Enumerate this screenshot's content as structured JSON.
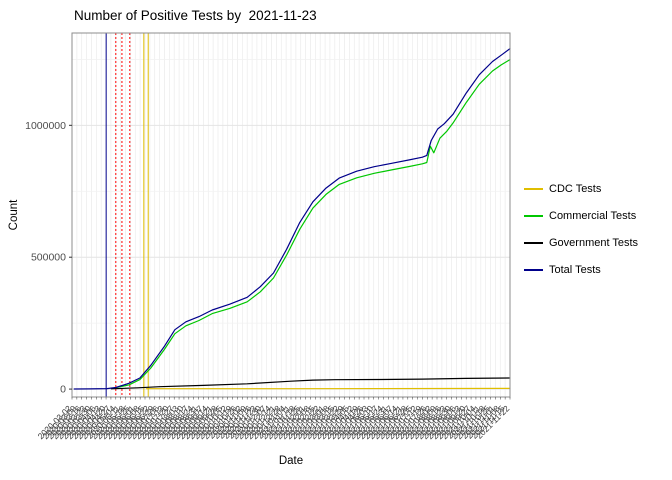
{
  "title": "Number of Positive Tests by  2021-11-23",
  "legend": {
    "position": "right",
    "items": [
      {
        "label": "CDC Tests",
        "color": "#E0BE00"
      },
      {
        "label": "Commercial Tests",
        "color": "#00C700"
      },
      {
        "label": "Government Tests",
        "color": "#000000"
      },
      {
        "label": "Total Tests",
        "color": "#00008B"
      }
    ]
  },
  "chart_data": {
    "type": "line",
    "title": "Number of Positive Tests by  2021-11-23",
    "xlabel": "Date",
    "ylabel": "Count",
    "ylim": [
      -30000,
      1350000
    ],
    "yticks": [
      0,
      500000,
      1000000
    ],
    "ytick_labels": [
      "0",
      "500000",
      "1000000"
    ],
    "ygrid_minor": [
      250000,
      750000,
      1250000
    ],
    "grid": true,
    "legend_position": "right",
    "x_axis": {
      "start_date": "2020-03-02",
      "end_date": "2021-11-23",
      "label_step_days": 7,
      "label_angle": 45
    },
    "vlines": [
      {
        "frac": 0.078,
        "color": "#00008B",
        "style": "solid"
      },
      {
        "frac": 0.1,
        "color": "#FF0000",
        "style": "dotted"
      },
      {
        "frac": 0.114,
        "color": "#FF0000",
        "style": "dotted"
      },
      {
        "frac": 0.132,
        "color": "#FF0000",
        "style": "dotted"
      },
      {
        "frac": 0.164,
        "color": "#E0BE00",
        "style": "solid"
      },
      {
        "frac": 0.174,
        "color": "#E0BE00",
        "style": "solid"
      }
    ],
    "series": [
      {
        "name": "CDC Tests",
        "color": "#E0BE00",
        "points": [
          [
            0.17,
            1500
          ],
          [
            0.5,
            1600
          ],
          [
            1.0,
            2500
          ]
        ]
      },
      {
        "name": "Commercial Tests",
        "color": "#00C700",
        "points": [
          [
            0.09,
            2000
          ],
          [
            0.13,
            16000
          ],
          [
            0.155,
            36000
          ],
          [
            0.18,
            80000
          ],
          [
            0.21,
            148000
          ],
          [
            0.235,
            210000
          ],
          [
            0.26,
            240000
          ],
          [
            0.29,
            260000
          ],
          [
            0.32,
            286000
          ],
          [
            0.36,
            306000
          ],
          [
            0.4,
            331000
          ],
          [
            0.43,
            369000
          ],
          [
            0.46,
            421000
          ],
          [
            0.49,
            508000
          ],
          [
            0.52,
            606000
          ],
          [
            0.55,
            686000
          ],
          [
            0.58,
            738000
          ],
          [
            0.61,
            776000
          ],
          [
            0.65,
            801000
          ],
          [
            0.69,
            818000
          ],
          [
            0.73,
            831000
          ],
          [
            0.77,
            844000
          ],
          [
            0.8,
            854000
          ],
          [
            0.81,
            859000
          ],
          [
            0.818,
            921000
          ],
          [
            0.826,
            896000
          ],
          [
            0.84,
            951000
          ],
          [
            0.855,
            976000
          ],
          [
            0.87,
            1009000
          ],
          [
            0.9,
            1086000
          ],
          [
            0.93,
            1156000
          ],
          [
            0.96,
            1206000
          ],
          [
            0.98,
            1229000
          ],
          [
            1.0,
            1249000
          ]
        ]
      },
      {
        "name": "Government Tests",
        "color": "#000000",
        "points": [
          [
            0.09,
            1000
          ],
          [
            0.15,
            5000
          ],
          [
            0.2,
            9000
          ],
          [
            0.3,
            14000
          ],
          [
            0.4,
            20000
          ],
          [
            0.5,
            30000
          ],
          [
            0.55,
            34000
          ],
          [
            0.6,
            35500
          ],
          [
            0.7,
            36500
          ],
          [
            0.8,
            38000
          ],
          [
            0.9,
            40500
          ],
          [
            1.0,
            42000
          ]
        ]
      },
      {
        "name": "Total Tests",
        "color": "#00008B",
        "points": [
          [
            0.005,
            500
          ],
          [
            0.04,
            800
          ],
          [
            0.08,
            2000
          ],
          [
            0.1,
            6000
          ],
          [
            0.13,
            22000
          ],
          [
            0.155,
            42000
          ],
          [
            0.18,
            90000
          ],
          [
            0.21,
            160000
          ],
          [
            0.235,
            225000
          ],
          [
            0.26,
            255000
          ],
          [
            0.29,
            275000
          ],
          [
            0.32,
            300000
          ],
          [
            0.36,
            322000
          ],
          [
            0.4,
            348000
          ],
          [
            0.43,
            388000
          ],
          [
            0.46,
            440000
          ],
          [
            0.49,
            530000
          ],
          [
            0.52,
            632000
          ],
          [
            0.55,
            710000
          ],
          [
            0.58,
            762000
          ],
          [
            0.61,
            800000
          ],
          [
            0.65,
            826000
          ],
          [
            0.69,
            843000
          ],
          [
            0.73,
            856000
          ],
          [
            0.77,
            869000
          ],
          [
            0.8,
            879000
          ],
          [
            0.81,
            886000
          ],
          [
            0.82,
            942000
          ],
          [
            0.835,
            986000
          ],
          [
            0.85,
            1006000
          ],
          [
            0.87,
            1042000
          ],
          [
            0.9,
            1122000
          ],
          [
            0.93,
            1192000
          ],
          [
            0.96,
            1242000
          ],
          [
            0.98,
            1266000
          ],
          [
            1.0,
            1291000
          ]
        ]
      }
    ]
  }
}
